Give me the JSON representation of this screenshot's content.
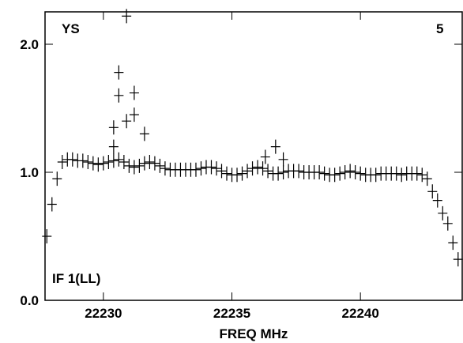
{
  "chart_data": {
    "type": "scatter",
    "color": "#000000",
    "annotations": [
      "YS",
      "5",
      "IF 1(LL)"
    ],
    "xlabel": "FREQ MHz",
    "xlim": [
      22227.73,
      22243.96
    ],
    "xticks": [
      22230,
      22235,
      22240
    ],
    "ylim": [
      0,
      2.253
    ],
    "yticks": [
      {
        "value": 0,
        "label": "0.0"
      },
      {
        "value": 1,
        "label": "1.0"
      },
      {
        "value": 2,
        "label": "2.0"
      }
    ],
    "x": [
      22227.8,
      22228.0,
      22228.2,
      22228.4,
      22228.6,
      22228.8,
      22229.0,
      22229.2,
      22229.4,
      22229.6,
      22229.8,
      22230.0,
      22230.2,
      22230.4,
      22230.6,
      22230.8,
      22231.0,
      22231.2,
      22231.4,
      22231.6,
      22231.8,
      22232.0,
      22232.2,
      22232.4,
      22232.6,
      22232.8,
      22233.0,
      22233.2,
      22233.4,
      22233.6,
      22233.8,
      22234.0,
      22234.2,
      22234.4,
      22234.6,
      22234.8,
      22235.0,
      22235.2,
      22235.4,
      22235.6,
      22235.8,
      22236.0,
      22236.2,
      22236.4,
      22236.6,
      22236.8,
      22237.0,
      22237.2,
      22237.4,
      22237.6,
      22237.8,
      22238.0,
      22238.2,
      22238.4,
      22238.6,
      22238.8,
      22239.0,
      22239.2,
      22239.4,
      22239.6,
      22239.8,
      22240.0,
      22240.2,
      22240.4,
      22240.6,
      22240.8,
      22241.0,
      22241.2,
      22241.4,
      22241.6,
      22241.8,
      22242.0,
      22242.2,
      22242.4,
      22242.6,
      22242.8,
      22243.0,
      22243.2,
      22243.4,
      22243.6,
      22243.8,
      22230.4,
      22230.4,
      22230.6,
      22230.6,
      22230.9,
      22230.9,
      22231.2,
      22231.2,
      22231.6,
      22236.3,
      22236.7,
      22237.0
    ],
    "values": [
      0.5,
      0.75,
      0.95,
      1.08,
      1.1,
      1.1,
      1.09,
      1.09,
      1.08,
      1.07,
      1.06,
      1.07,
      1.08,
      1.09,
      1.1,
      1.08,
      1.05,
      1.04,
      1.05,
      1.07,
      1.08,
      1.07,
      1.05,
      1.03,
      1.02,
      1.02,
      1.02,
      1.02,
      1.02,
      1.02,
      1.03,
      1.04,
      1.04,
      1.03,
      1.01,
      0.99,
      0.98,
      0.98,
      0.99,
      1.01,
      1.03,
      1.04,
      1.03,
      1.01,
      0.99,
      0.99,
      1.0,
      1.01,
      1.01,
      1.01,
      1.0,
      1.0,
      1.0,
      1.0,
      0.99,
      0.98,
      0.98,
      0.99,
      1.0,
      1.01,
      1.0,
      0.99,
      0.98,
      0.98,
      0.98,
      0.99,
      0.99,
      0.99,
      0.99,
      0.98,
      0.99,
      0.99,
      0.99,
      0.98,
      0.95,
      0.85,
      0.78,
      0.68,
      0.6,
      0.45,
      0.32,
      1.35,
      1.2,
      1.78,
      1.6,
      2.22,
      1.4,
      1.62,
      1.45,
      1.3,
      1.12,
      1.2,
      1.1
    ]
  }
}
